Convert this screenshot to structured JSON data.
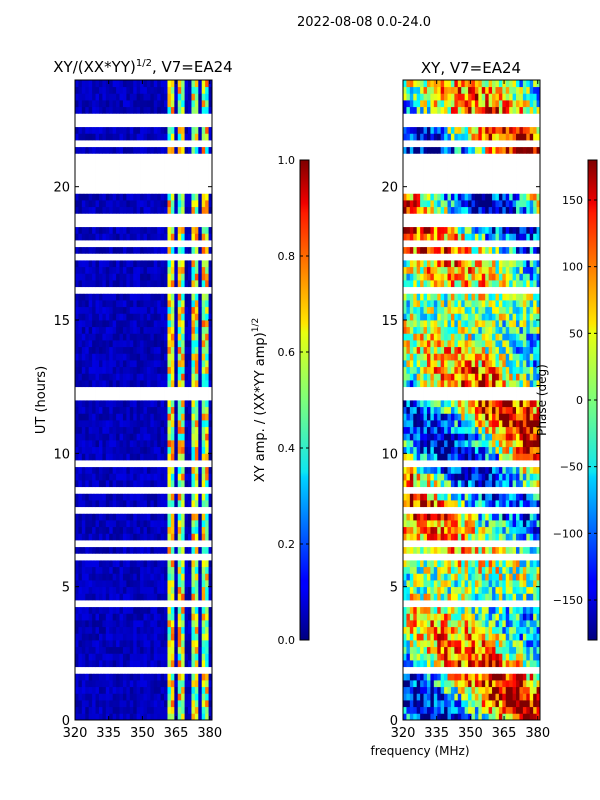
{
  "suptitle": "2022-08-08 0.0-24.0",
  "xlabel_shared": "frequency (MHz)",
  "chart_data": [
    {
      "type": "heatmap",
      "title": "XY/(XX*YY)",
      "title_exp": "1/2",
      "title_suffix": ", V7=EA24",
      "xlabel": "",
      "ylabel": "UT (hours)",
      "xlim": [
        320,
        381
      ],
      "ylim": [
        0,
        24
      ],
      "xticks": [
        320,
        335,
        350,
        365,
        380
      ],
      "yticks": [
        0,
        5,
        10,
        15,
        20
      ],
      "colorbar": {
        "label": "XY amp. / (XX*YY amp)",
        "label_exp": "1/2",
        "range": [
          0.0,
          1.0
        ],
        "ticks": [
          "0.0",
          "0.2",
          "0.4",
          "0.6",
          "0.8",
          "1.0"
        ],
        "tick_values": [
          0.0,
          0.2,
          0.4,
          0.6,
          0.8,
          1.0
        ]
      },
      "flagged_time_bands_hours": [
        [
          1.7,
          2.05
        ],
        [
          4.35,
          4.55
        ],
        [
          5.2,
          5.35
        ],
        [
          6.1,
          6.25
        ],
        [
          6.6,
          6.75
        ],
        [
          7.7,
          7.9
        ],
        [
          8.5,
          8.65
        ],
        [
          9.55,
          9.7
        ],
        [
          11.45,
          11.6
        ],
        [
          12.05,
          12.45
        ],
        [
          13.7,
          13.85
        ],
        [
          16.1,
          16.25
        ],
        [
          17.2,
          17.4
        ],
        [
          17.7,
          18.0
        ],
        [
          18.55,
          19.1
        ],
        [
          19.8,
          21.2
        ],
        [
          21.6,
          21.75
        ],
        [
          22.3,
          22.8
        ],
        [
          23.2,
          23.35
        ]
      ],
      "high_amplitude_frequency_bands_mhz": [
        [
          361.5,
          364.5
        ],
        [
          366,
          369
        ],
        [
          371.5,
          374.5
        ],
        [
          376,
          379
        ]
      ]
    },
    {
      "type": "heatmap",
      "title": "XY, V7=EA24",
      "xlabel": "frequency (MHz)",
      "ylabel": "",
      "xlim": [
        320,
        381
      ],
      "ylim": [
        0,
        24
      ],
      "xticks": [
        320,
        335,
        350,
        365,
        380
      ],
      "yticks": [
        0,
        5,
        10,
        15,
        20
      ],
      "colorbar": {
        "label": "Phase (deg)",
        "range": [
          -180,
          180
        ],
        "ticks": [
          "−150",
          "−100",
          "−50",
          "0",
          "50",
          "100",
          "150"
        ],
        "tick_values": [
          -150,
          -100,
          -50,
          0,
          50,
          100,
          150
        ]
      },
      "flagged_time_bands_hours": [
        [
          1.7,
          2.05
        ],
        [
          4.35,
          4.55
        ],
        [
          5.2,
          5.35
        ],
        [
          6.1,
          6.25
        ],
        [
          6.6,
          6.75
        ],
        [
          7.7,
          7.9
        ],
        [
          8.5,
          8.65
        ],
        [
          9.55,
          9.7
        ],
        [
          11.45,
          11.6
        ],
        [
          12.05,
          12.45
        ],
        [
          13.7,
          13.85
        ],
        [
          16.1,
          16.25
        ],
        [
          17.2,
          17.4
        ],
        [
          17.7,
          18.0
        ],
        [
          18.55,
          19.1
        ],
        [
          19.8,
          21.2
        ],
        [
          21.6,
          21.75
        ],
        [
          22.3,
          22.8
        ],
        [
          23.2,
          23.35
        ]
      ]
    }
  ]
}
